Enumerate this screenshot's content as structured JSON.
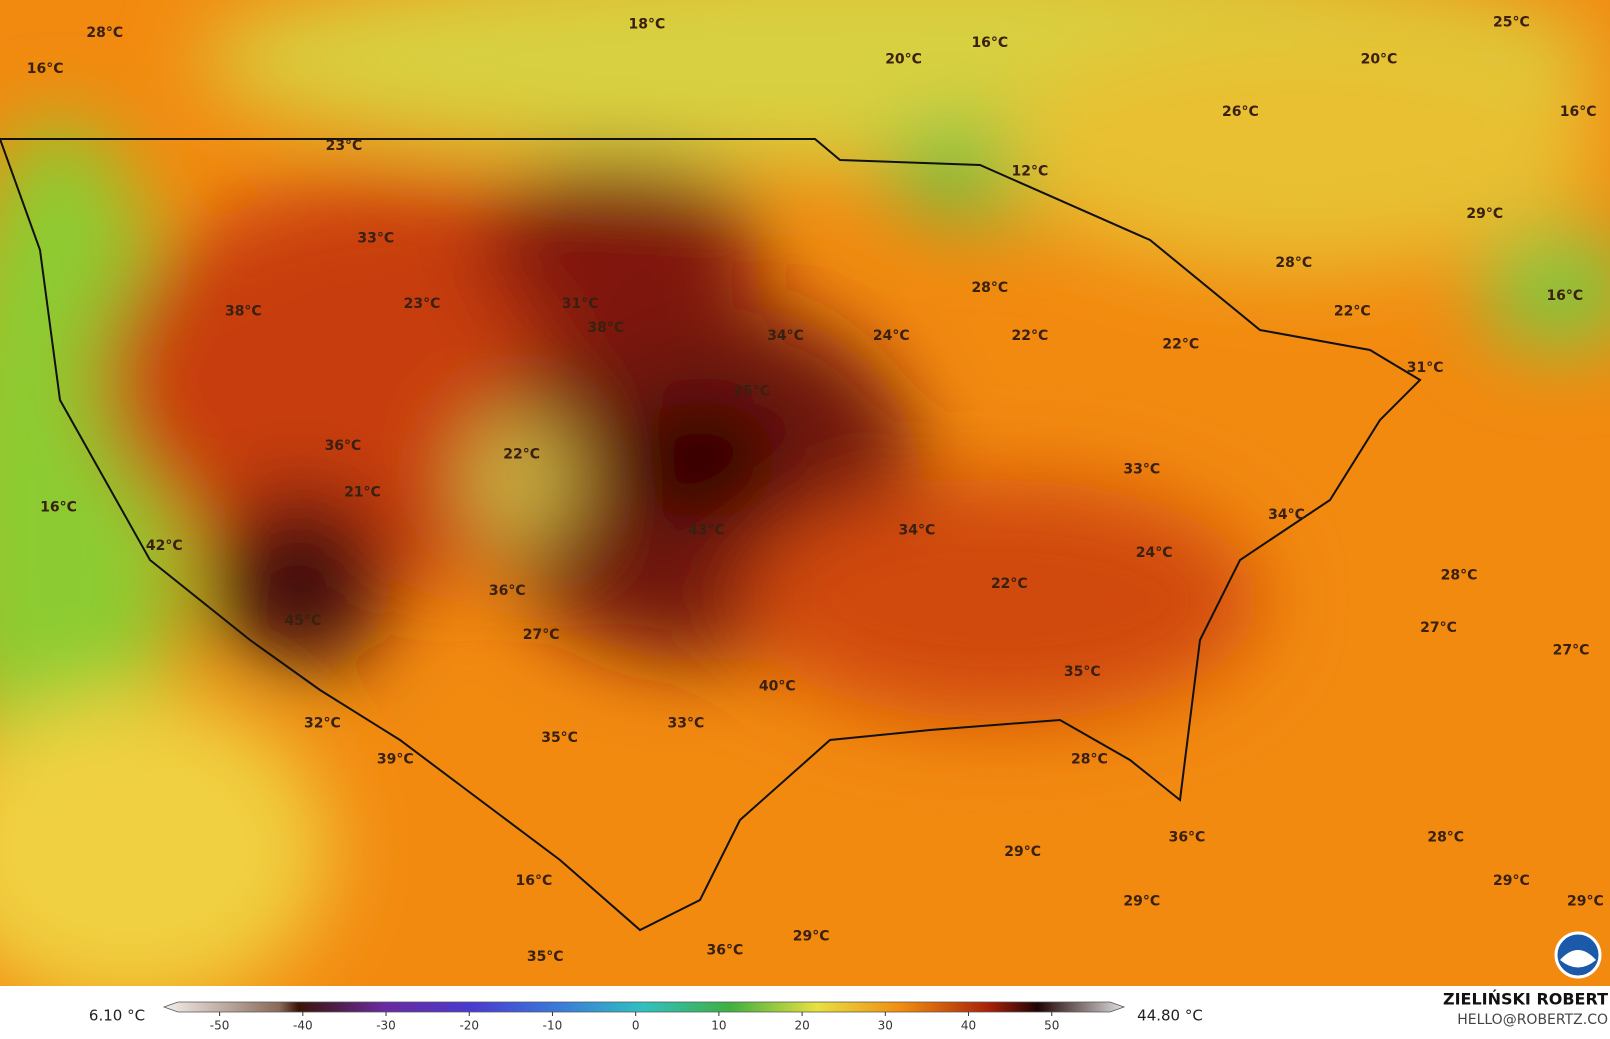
{
  "map": {
    "labels": [
      "28°C",
      "18°C",
      "20°C",
      "16°C",
      "25°C",
      "20°C",
      "16°C",
      "26°C",
      "16°C",
      "23°C",
      "12°C",
      "29°C",
      "33°C",
      "28°C",
      "28°C",
      "16°C",
      "23°C",
      "31°C",
      "38°C",
      "22°C",
      "38°C",
      "34°C",
      "24°C",
      "22°C",
      "22°C",
      "31°C",
      "25°C",
      "36°C",
      "22°C",
      "33°C",
      "21°C",
      "16°C",
      "34°C",
      "43°C",
      "34°C",
      "42°C",
      "24°C",
      "22°C",
      "28°C",
      "36°C",
      "45°C",
      "27°C",
      "27°C",
      "27°C",
      "35°C",
      "40°C",
      "32°C",
      "33°C",
      "35°C",
      "39°C",
      "28°C",
      "28°C",
      "36°C",
      "29°C",
      "16°C",
      "29°C",
      "29°C",
      "29°C",
      "29°C",
      "35°C",
      "36°C"
    ],
    "colorbar": {
      "min_label": "6.10 °C",
      "max_label": "44.80 °C",
      "lim": [
        -55,
        57
      ],
      "ticks": [
        -50,
        -40,
        -30,
        -20,
        -10,
        0,
        10,
        20,
        30,
        40,
        50
      ]
    },
    "author": "ZIELIŃSKI ROBERT",
    "email": "HELLO@ROBERTZ.CO"
  }
}
